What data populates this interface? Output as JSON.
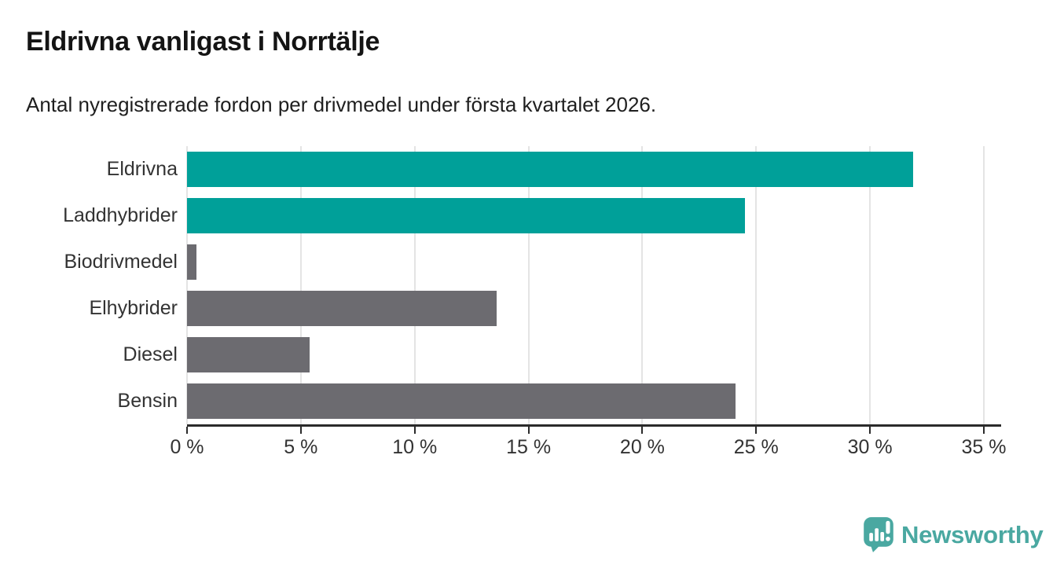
{
  "chart_data": {
    "type": "bar",
    "orientation": "horizontal",
    "title": "Eldrivna vanligast i Norrtälje",
    "subtitle": "Antal nyregistrerade fordon per drivmedel under första kvartalet 2026.",
    "categories": [
      "Eldrivna",
      "Laddhybrider",
      "Biodrivmedel",
      "Elhybrider",
      "Diesel",
      "Bensin"
    ],
    "values": [
      31.9,
      24.5,
      0.4,
      13.6,
      5.4,
      24.1
    ],
    "unit": "%",
    "xlim": [
      0,
      35
    ],
    "tick_step": 5,
    "x_tick_labels": [
      "0 %",
      "5 %",
      "10 %",
      "15 %",
      "20 %",
      "25 %",
      "30 %",
      "35 %"
    ],
    "bar_colors": [
      "#00a099",
      "#00a099",
      "#6c6b70",
      "#6c6b70",
      "#6c6b70",
      "#6c6b70"
    ],
    "grid": true,
    "legend": "none",
    "xlabel": "",
    "ylabel": ""
  },
  "colors": {
    "accent_teal": "#00a099",
    "bar_gray": "#6c6b70",
    "gridline": "#e4e4e4",
    "axis": "#2b2b2b",
    "tick_text": "#333333",
    "logo_teal": "#4aa8a1"
  },
  "footer": {
    "brand": "Newsworthy"
  }
}
